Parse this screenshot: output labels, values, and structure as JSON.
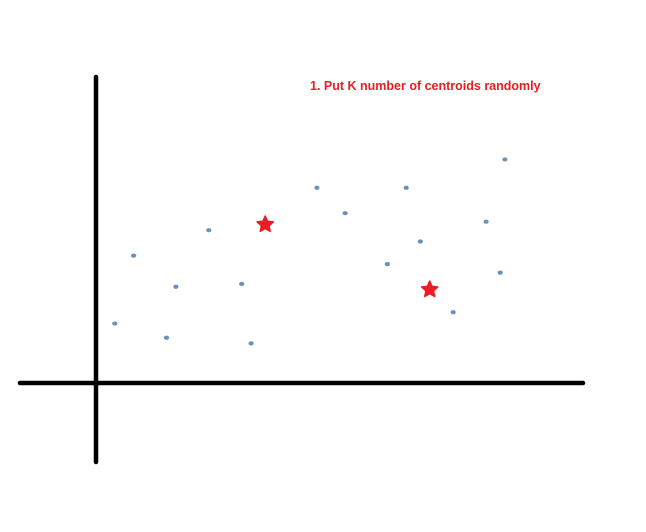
{
  "caption": {
    "text": "1. Put K number of centroids randomly",
    "color": "#ed1c24"
  },
  "colors": {
    "axis": "#000000",
    "data_point": "#6a90c0",
    "centroid": "#ed1c24"
  },
  "chart_data": {
    "type": "scatter",
    "title": "",
    "xlabel": "",
    "ylabel": "",
    "grid": false,
    "xlim": [
      0,
      100
    ],
    "ylim": [
      0,
      100
    ],
    "series": [
      {
        "marker": "dot",
        "color": "#6a90c0",
        "points": [
          {
            "x": 4,
            "y": 21
          },
          {
            "x": 8,
            "y": 45
          },
          {
            "x": 15,
            "y": 16
          },
          {
            "x": 17,
            "y": 34
          },
          {
            "x": 24,
            "y": 54
          },
          {
            "x": 31,
            "y": 35
          },
          {
            "x": 33,
            "y": 14
          },
          {
            "x": 47,
            "y": 69
          },
          {
            "x": 53,
            "y": 60
          },
          {
            "x": 62,
            "y": 42
          },
          {
            "x": 66,
            "y": 69
          },
          {
            "x": 69,
            "y": 50
          },
          {
            "x": 76,
            "y": 25
          },
          {
            "x": 83,
            "y": 57
          },
          {
            "x": 86,
            "y": 39
          },
          {
            "x": 87,
            "y": 79
          }
        ]
      },
      {
        "marker": "star",
        "color": "#ed1c24",
        "points": [
          {
            "x": 36,
            "y": 56
          },
          {
            "x": 71,
            "y": 33
          }
        ]
      }
    ]
  }
}
